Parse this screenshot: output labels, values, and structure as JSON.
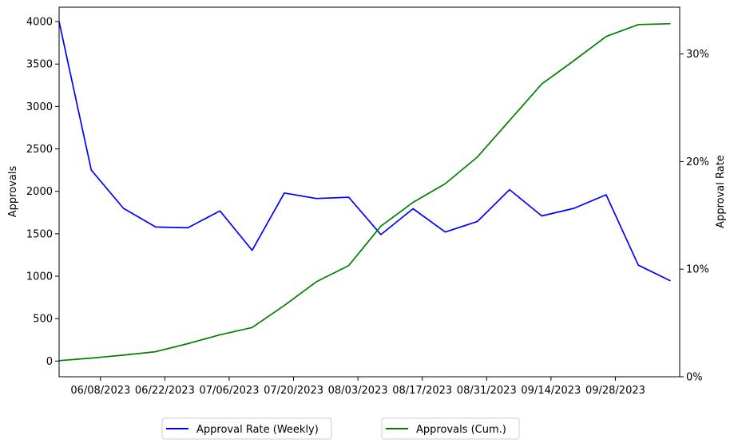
{
  "chart_data": {
    "type": "line",
    "title": "",
    "xlabel": "",
    "ylabel_left": "Approvals",
    "ylabel_right": "Approval Rate",
    "x_axis": {
      "type": "date",
      "range": [
        "2023-05-30",
        "2023-10-12"
      ],
      "ticks": [
        {
          "date": "2023-06-08",
          "label": "06/08/2023"
        },
        {
          "date": "2023-06-22",
          "label": "06/22/2023"
        },
        {
          "date": "2023-07-06",
          "label": "07/06/2023"
        },
        {
          "date": "2023-07-20",
          "label": "07/20/2023"
        },
        {
          "date": "2023-08-03",
          "label": "08/03/2023"
        },
        {
          "date": "2023-08-17",
          "label": "08/17/2023"
        },
        {
          "date": "2023-08-31",
          "label": "08/31/2023"
        },
        {
          "date": "2023-09-14",
          "label": "09/14/2023"
        },
        {
          "date": "2023-09-28",
          "label": "09/28/2023"
        }
      ]
    },
    "y_left": {
      "range": [
        -185,
        4170
      ],
      "ticks": [
        {
          "value": 0,
          "label": "0"
        },
        {
          "value": 500,
          "label": "500"
        },
        {
          "value": 1000,
          "label": "1000"
        },
        {
          "value": 1500,
          "label": "1500"
        },
        {
          "value": 2000,
          "label": "2000"
        },
        {
          "value": 2500,
          "label": "2500"
        },
        {
          "value": 3000,
          "label": "3000"
        },
        {
          "value": 3500,
          "label": "3500"
        },
        {
          "value": 4000,
          "label": "4000"
        }
      ]
    },
    "y_right": {
      "range": [
        0,
        0.3435
      ],
      "ticks": [
        {
          "value": 0.0,
          "label": "0%"
        },
        {
          "value": 0.1,
          "label": "10%"
        },
        {
          "value": 0.2,
          "label": "20%"
        },
        {
          "value": 0.3,
          "label": "30%"
        }
      ]
    },
    "grid": false,
    "legend": {
      "placement": "below-center",
      "entries": [
        {
          "label": "Approval Rate (Weekly)",
          "color": "#0000ff"
        },
        {
          "label": "Approvals (Cum.)",
          "color": "#008000"
        }
      ]
    },
    "series": [
      {
        "name": "Approval Rate (Weekly)",
        "axis": "left",
        "color": "#0000ff",
        "x": [
          "2023-05-30",
          "2023-06-06",
          "2023-06-13",
          "2023-06-20",
          "2023-06-27",
          "2023-07-04",
          "2023-07-11",
          "2023-07-18",
          "2023-07-25",
          "2023-08-01",
          "2023-08-08",
          "2023-08-15",
          "2023-08-22",
          "2023-08-29",
          "2023-09-05",
          "2023-09-12",
          "2023-09-19",
          "2023-09-26",
          "2023-10-03",
          "2023-10-10"
        ],
        "y": [
          4000,
          2250,
          1800,
          1580,
          1570,
          1770,
          1305,
          1980,
          1915,
          1930,
          1490,
          1795,
          1520,
          1645,
          2020,
          1710,
          1800,
          1960,
          1130,
          945
        ]
      },
      {
        "name": "Approvals (Cum.)",
        "axis": "left",
        "color": "#008000",
        "x": [
          "2023-05-30",
          "2023-06-06",
          "2023-06-13",
          "2023-06-20",
          "2023-06-27",
          "2023-07-04",
          "2023-07-11",
          "2023-07-18",
          "2023-07-25",
          "2023-08-01",
          "2023-08-08",
          "2023-08-15",
          "2023-08-22",
          "2023-08-29",
          "2023-09-05",
          "2023-09-12",
          "2023-09-19",
          "2023-09-26",
          "2023-10-03",
          "2023-10-10"
        ],
        "y": [
          5,
          35,
          70,
          110,
          205,
          310,
          395,
          655,
          935,
          1125,
          1590,
          1870,
          2090,
          2405,
          2835,
          3265,
          3540,
          3825,
          3965,
          3975
        ]
      }
    ]
  }
}
